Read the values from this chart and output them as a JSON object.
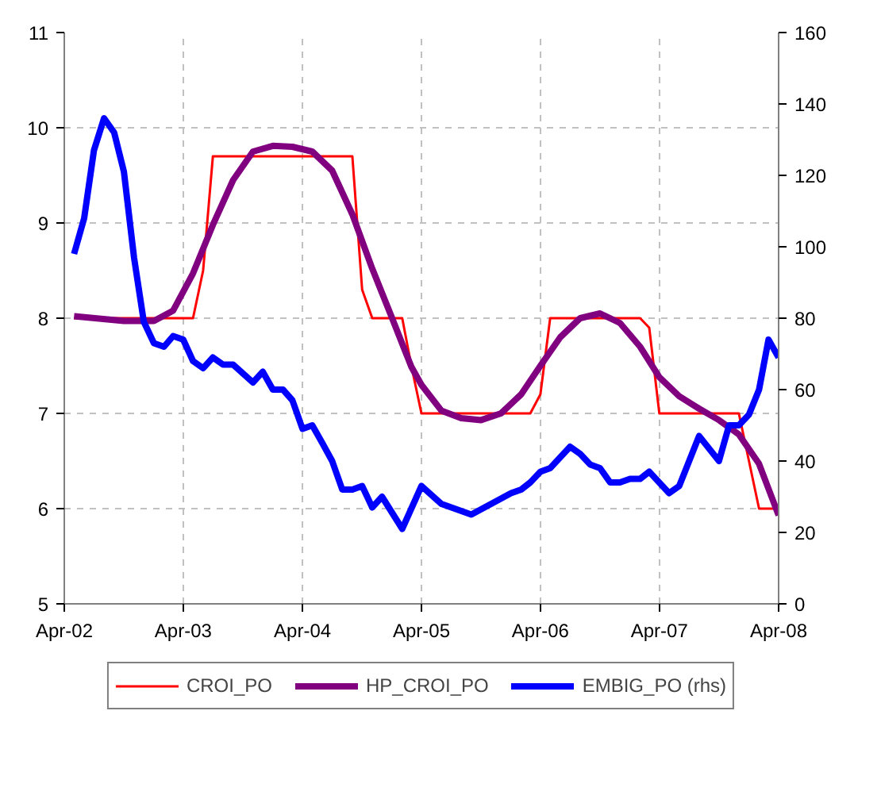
{
  "chart_data": {
    "type": "line",
    "xlim": [
      "2002-04",
      "2008-04"
    ],
    "xticks": [
      {
        "value": "2002-04",
        "label": "Apr-02"
      },
      {
        "value": "2003-04",
        "label": "Apr-03"
      },
      {
        "value": "2004-04",
        "label": "Apr-04"
      },
      {
        "value": "2005-04",
        "label": "Apr-05"
      },
      {
        "value": "2006-04",
        "label": "Apr-06"
      },
      {
        "value": "2007-04",
        "label": "Apr-07"
      },
      {
        "value": "2008-04",
        "label": "Apr-08"
      }
    ],
    "ylim": [
      5,
      11
    ],
    "yticks": [
      5,
      6,
      7,
      8,
      9,
      10,
      11
    ],
    "y2lim": [
      0,
      160
    ],
    "y2ticks": [
      0,
      20,
      40,
      60,
      80,
      100,
      120,
      140,
      160
    ],
    "grid": true,
    "legend": "bottom",
    "marker": "none",
    "line_style": "solid",
    "series": [
      {
        "name": "CROI_PO",
        "color": "#ff0000",
        "x": [
          "2002-05",
          "2003-05",
          "2003-06",
          "2003-07",
          "2004-09",
          "2004-10",
          "2004-11",
          "2005-02",
          "2005-03",
          "2005-04",
          "2006-03",
          "2006-04",
          "2006-05",
          "2007-02",
          "2007-03",
          "2007-04",
          "2007-12",
          "2008-01",
          "2008-02",
          "2008-04"
        ],
        "values": [
          8.0,
          8.0,
          8.5,
          9.7,
          9.7,
          8.3,
          8.0,
          8.0,
          7.5,
          7.0,
          7.0,
          7.2,
          8.0,
          8.0,
          7.9,
          7.0,
          7.0,
          6.5,
          6.0,
          6.0
        ]
      },
      {
        "name": "HP_CROI_PO",
        "color": "#800080",
        "x": [
          "2002-05",
          "2002-10",
          "2003-01",
          "2003-03",
          "2003-05",
          "2003-07",
          "2003-09",
          "2003-11",
          "2004-01",
          "2004-03",
          "2004-05",
          "2004-07",
          "2004-09",
          "2004-11",
          "2005-01",
          "2005-03",
          "2005-04",
          "2005-06",
          "2005-08",
          "2005-10",
          "2005-12",
          "2006-02",
          "2006-04",
          "2006-06",
          "2006-08",
          "2006-10",
          "2006-12",
          "2007-02",
          "2007-04",
          "2007-06",
          "2007-08",
          "2007-10",
          "2007-12",
          "2008-02",
          "2008-04"
        ],
        "values": [
          8.02,
          7.97,
          7.97,
          8.08,
          8.47,
          8.98,
          9.45,
          9.75,
          9.81,
          9.8,
          9.75,
          9.55,
          9.09,
          8.52,
          8.0,
          7.49,
          7.3,
          7.03,
          6.95,
          6.93,
          7.0,
          7.2,
          7.5,
          7.8,
          8.0,
          8.05,
          7.95,
          7.7,
          7.38,
          7.18,
          7.05,
          6.93,
          6.78,
          6.47,
          5.93
        ]
      },
      {
        "name": "EMBIG_PO (rhs)",
        "color": "#0000ff",
        "axis": "y2",
        "x": [
          "2002-05",
          "2002-06",
          "2002-07",
          "2002-08",
          "2002-09",
          "2002-10",
          "2002-11",
          "2002-12",
          "2003-01",
          "2003-02",
          "2003-03",
          "2003-04",
          "2003-05",
          "2003-06",
          "2003-07",
          "2003-08",
          "2003-09",
          "2003-11",
          "2003-12",
          "2004-01",
          "2004-02",
          "2004-03",
          "2004-04",
          "2004-05",
          "2004-06",
          "2004-07",
          "2004-08",
          "2004-09",
          "2004-10",
          "2004-11",
          "2004-12",
          "2005-02",
          "2005-04",
          "2005-06",
          "2005-09",
          "2005-11",
          "2006-01",
          "2006-02",
          "2006-03",
          "2006-04",
          "2006-05",
          "2006-07",
          "2006-08",
          "2006-09",
          "2006-10",
          "2006-11",
          "2006-12",
          "2007-01",
          "2007-02",
          "2007-03",
          "2007-05",
          "2007-06",
          "2007-08",
          "2007-10",
          "2007-11",
          "2007-12",
          "2008-01",
          "2008-02",
          "2008-03",
          "2008-04"
        ],
        "values": [
          98,
          108,
          127,
          136,
          132,
          121,
          97,
          79,
          73,
          72,
          75,
          74,
          68,
          66,
          69,
          67,
          67,
          62,
          65,
          60,
          60,
          57,
          49,
          50,
          45,
          40,
          32,
          32,
          33,
          27,
          30,
          21,
          33,
          28,
          25,
          28,
          31,
          32,
          34,
          37,
          38,
          44,
          42,
          39,
          38,
          34,
          34,
          35,
          35,
          37,
          31,
          33,
          47,
          40,
          50,
          50,
          53,
          60,
          74,
          69
        ]
      }
    ]
  }
}
